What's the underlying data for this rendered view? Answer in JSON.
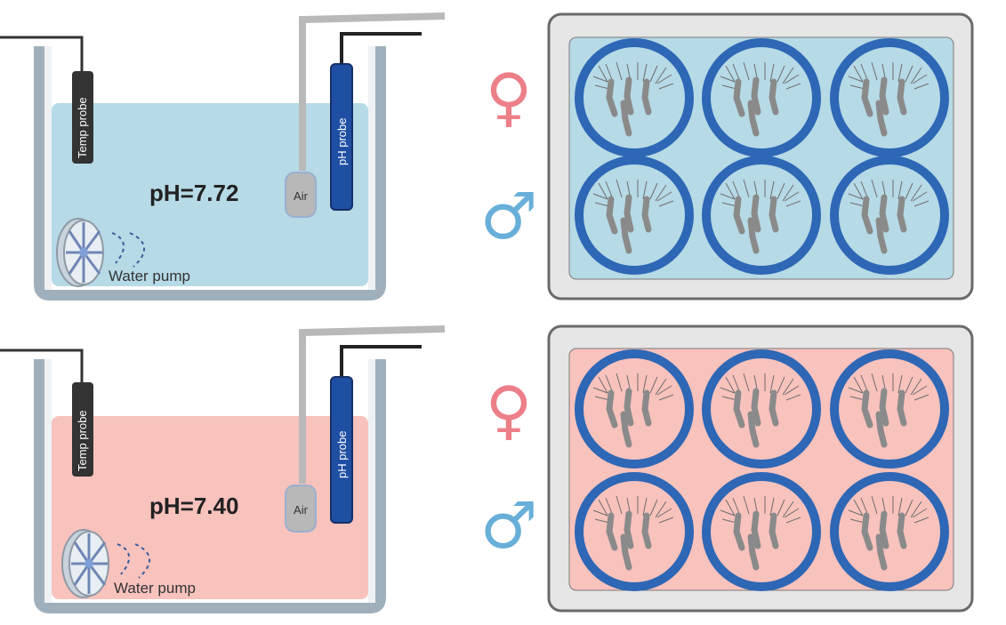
{
  "labels": {
    "temp_probe": "Temp probe",
    "ph_probe": "pH probe",
    "air": "Air",
    "water_pump": "Water pump"
  },
  "tanks": [
    {
      "ph_text": "pH=7.72",
      "water_color": "#b6dae6"
    },
    {
      "ph_text": "pH=7.40",
      "water_color": "#f8c2bd"
    }
  ],
  "plates": [
    {
      "fill_color": "#b6dae6"
    },
    {
      "fill_color": "#f8c2bd"
    }
  ],
  "symbols": {
    "female": "♀",
    "male": "♂",
    "female_color": "#ec7f88",
    "male_color": "#68afd9"
  },
  "colors": {
    "well_ring": "#2e67b5",
    "probe_dark": "#333333",
    "probe_blue": "#1f4fa3",
    "pipe_gray": "#b9b9b9"
  }
}
